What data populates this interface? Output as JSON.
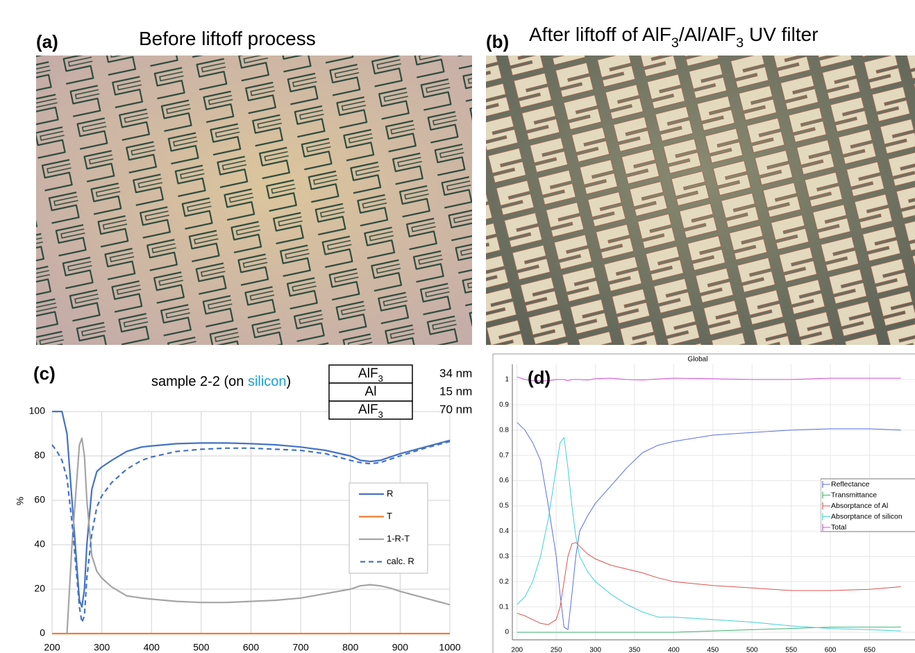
{
  "panels": [
    {
      "label": "(a)",
      "title": [
        "Before liftoff process"
      ]
    },
    {
      "label": "(b)",
      "title": [
        "After liftoff of AlF",
        "3",
        "/Al/AlF",
        "3",
        " UV filter"
      ]
    }
  ],
  "chart_data": [
    {
      "type": "line",
      "panel_label": "(c)",
      "title": [
        "sample 2-2 (on ",
        "silicon",
        ")"
      ],
      "ylabel": "%",
      "layers": [
        {
          "material": [
            "AlF",
            "3"
          ],
          "thickness": "34 nm"
        },
        {
          "material": [
            "Al"
          ],
          "thickness": "15 nm"
        },
        {
          "material": [
            "AlF",
            "3"
          ],
          "thickness": "70 nm"
        }
      ],
      "x": [
        200,
        210,
        220,
        230,
        240,
        250,
        255,
        260,
        265,
        270,
        280,
        290,
        300,
        320,
        350,
        380,
        400,
        450,
        500,
        550,
        600,
        650,
        700,
        750,
        800,
        820,
        840,
        860,
        880,
        900,
        950,
        1000
      ],
      "series": [
        {
          "name": "R",
          "color": "#4472c4",
          "dashed": false,
          "values": [
            100,
            100,
            100,
            90,
            60,
            30,
            15,
            12,
            20,
            40,
            65,
            73,
            75,
            78,
            82,
            84,
            84.5,
            85.5,
            85.8,
            85.8,
            85.5,
            85,
            84,
            82.5,
            80,
            78,
            77.5,
            78,
            79.5,
            81,
            84,
            87
          ]
        },
        {
          "name": "T",
          "color": "#ed7d31",
          "dashed": false,
          "values": [
            0,
            0,
            0,
            0,
            0,
            0,
            0,
            0,
            0,
            0,
            0,
            0,
            0,
            0,
            0,
            0,
            0,
            0,
            0,
            0,
            0,
            0,
            0,
            0,
            0,
            0,
            0,
            0,
            0,
            0,
            0,
            0
          ]
        },
        {
          "name": "1-R-T",
          "color": "#a5a5a5",
          "dashed": false,
          "values": [
            null,
            null,
            null,
            0,
            40,
            70,
            85,
            88,
            80,
            60,
            35,
            28,
            25,
            21,
            17,
            16,
            15.5,
            14.5,
            14,
            14,
            14.5,
            15,
            16,
            18,
            20,
            21.5,
            22,
            21.5,
            20.5,
            19,
            16,
            13
          ]
        },
        {
          "name": "calc. R",
          "color": "#4472c4",
          "dashed": true,
          "values": [
            85,
            82,
            78,
            70,
            50,
            25,
            12,
            5,
            8,
            25,
            45,
            57,
            62,
            68,
            74,
            78,
            79.5,
            82,
            83,
            83.5,
            83.5,
            83,
            82.5,
            81,
            78,
            77,
            76.5,
            77,
            78.5,
            80,
            83.5,
            86.5
          ]
        }
      ],
      "xlim": [
        200,
        1000
      ],
      "xticks": [
        200,
        300,
        400,
        500,
        600,
        700,
        800,
        900,
        1000
      ],
      "ylim": [
        0,
        100
      ],
      "yticks": [
        0,
        20,
        40,
        60,
        80,
        100
      ],
      "grid": true
    },
    {
      "type": "line",
      "panel_label": "(d)",
      "title": "Global",
      "x": [
        200,
        210,
        220,
        230,
        240,
        250,
        255,
        260,
        265,
        270,
        275,
        280,
        290,
        300,
        320,
        340,
        360,
        380,
        400,
        450,
        500,
        550,
        600,
        650,
        690
      ],
      "series": [
        {
          "name": "Reflectance",
          "color": "#5b6fe0",
          "dashed": false,
          "values": [
            0.83,
            0.8,
            0.75,
            0.68,
            0.5,
            0.3,
            0.15,
            0.02,
            0.01,
            0.15,
            0.3,
            0.4,
            0.46,
            0.51,
            0.58,
            0.65,
            0.71,
            0.74,
            0.755,
            0.78,
            0.79,
            0.8,
            0.805,
            0.805,
            0.8
          ]
        },
        {
          "name": "Transmittance",
          "color": "#3cb371",
          "dashed": false,
          "values": [
            0,
            0,
            0,
            0,
            0,
            0,
            0,
            0,
            0,
            0,
            0,
            0,
            0,
            0,
            0,
            0,
            0,
            0,
            0,
            0.005,
            0.01,
            0.015,
            0.02,
            0.02,
            0.02
          ]
        },
        {
          "name": "Absorptance of Al",
          "color": "#d9534f",
          "dashed": false,
          "values": [
            0.075,
            0.065,
            0.05,
            0.035,
            0.03,
            0.05,
            0.1,
            0.2,
            0.3,
            0.35,
            0.355,
            0.34,
            0.31,
            0.29,
            0.265,
            0.25,
            0.235,
            0.215,
            0.2,
            0.185,
            0.175,
            0.165,
            0.165,
            0.17,
            0.18
          ]
        },
        {
          "name": "Absorptance of silicon",
          "color": "#40d0d8",
          "dashed": false,
          "values": [
            0.11,
            0.14,
            0.2,
            0.3,
            0.45,
            0.65,
            0.75,
            0.77,
            0.65,
            0.5,
            0.38,
            0.3,
            0.24,
            0.2,
            0.15,
            0.11,
            0.08,
            0.06,
            0.06,
            0.05,
            0.04,
            0.025,
            0.015,
            0.01,
            0.005
          ]
        },
        {
          "name": "Total",
          "color": "#d050d0",
          "dashed": false,
          "values": [
            1.01,
            1,
            0.995,
            0.995,
            0.995,
            1,
            1,
            1,
            0.995,
            1,
            1,
            1,
            0.998,
            1.003,
            1.005,
            1,
            0.998,
            1.002,
            1.005,
            1.003,
            1,
            1,
            1.005,
            1.005,
            1.005
          ]
        }
      ],
      "xlim": [
        194,
        708
      ],
      "xticks": [
        200,
        250,
        300,
        350,
        400,
        450,
        500,
        550,
        600,
        650
      ],
      "ylim": [
        -0.03,
        1.06
      ],
      "yticks": [
        0,
        0.1,
        0.2,
        0.3,
        0.4,
        0.5,
        0.6,
        0.7,
        0.8,
        0.9,
        1
      ],
      "grid": true
    }
  ]
}
